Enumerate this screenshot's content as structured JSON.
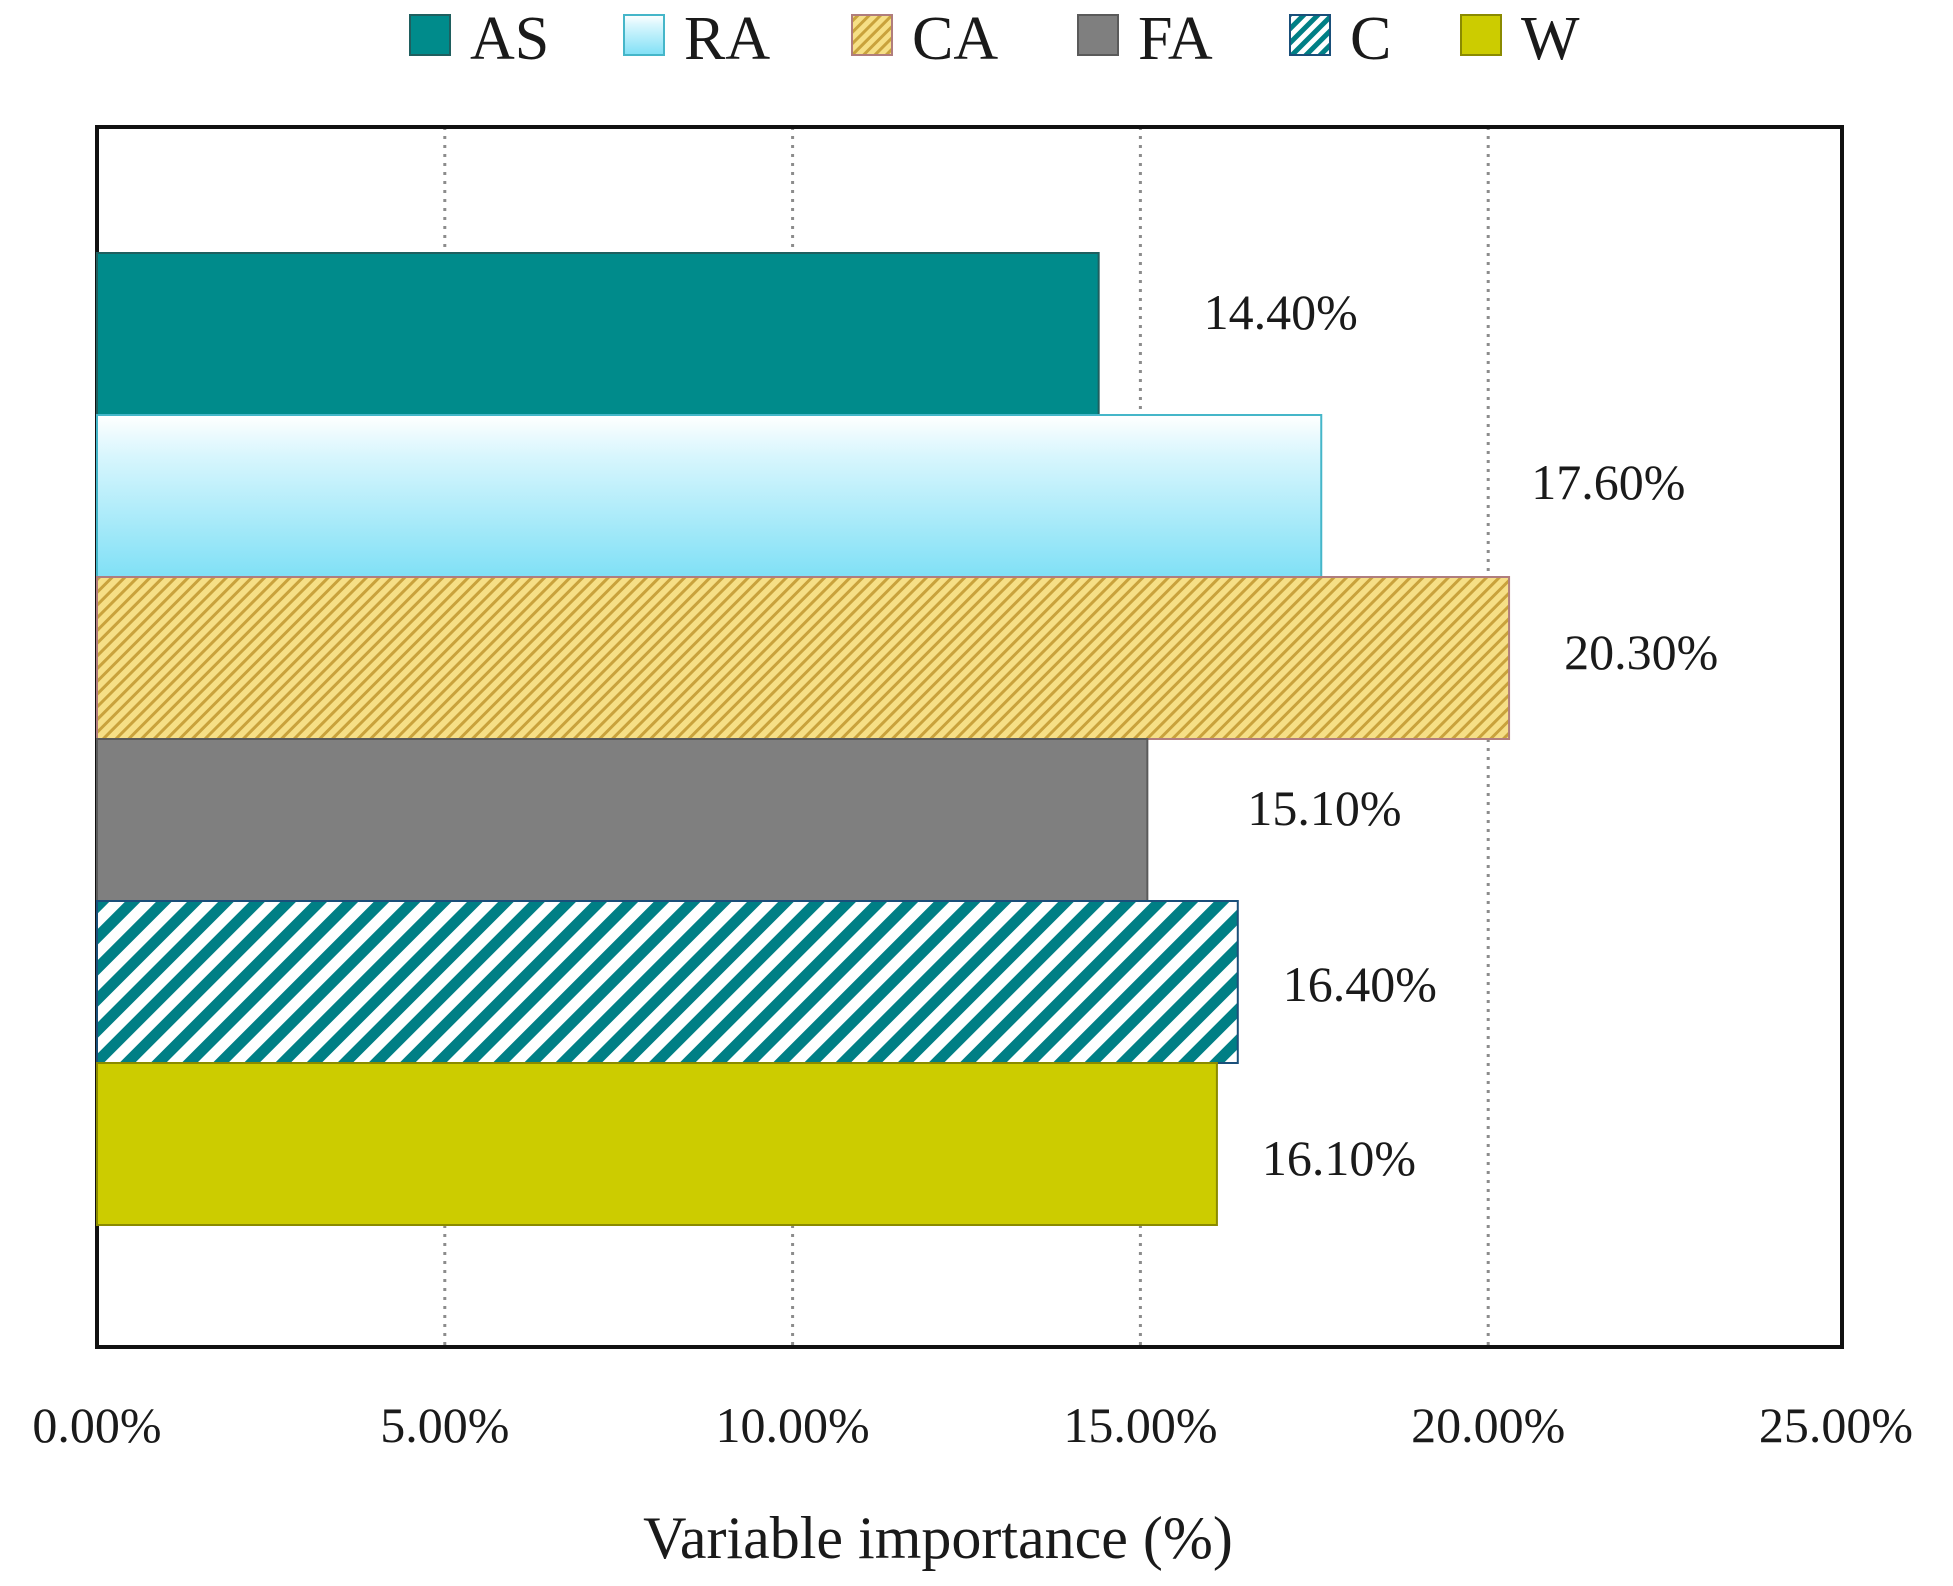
{
  "chart_data": {
    "type": "bar",
    "orientation": "horizontal",
    "title": "",
    "xlabel": "Variable importance (%)",
    "ylabel": "",
    "xlim": [
      0,
      25
    ],
    "xticks": [
      0,
      5,
      10,
      15,
      20,
      25
    ],
    "xtick_labels": [
      "0.00%",
      "5.00%",
      "10.00%",
      "15.00%",
      "20.00%",
      "25.00%"
    ],
    "grid": "vertical-dotted",
    "legend_position": "top",
    "categories": [
      "AS",
      "RA",
      "CA",
      "FA",
      "C",
      "W"
    ],
    "values": [
      14.4,
      17.6,
      20.3,
      15.1,
      16.4,
      16.1
    ],
    "value_labels": [
      "14.40%",
      "17.60%",
      "20.30%",
      "15.10%",
      "16.40%",
      "16.10%"
    ],
    "series_styles": [
      {
        "name": "AS",
        "fill": "#008b8b",
        "pattern": "solid",
        "stroke": "#1f5f5f"
      },
      {
        "name": "RA",
        "fill": "#a9ecfb",
        "pattern": "gradient",
        "stroke": "#45b6c9"
      },
      {
        "name": "CA",
        "fill": "#f3d46a",
        "pattern": "diagonal-hatch",
        "stroke": "#b07d7d"
      },
      {
        "name": "FA",
        "fill": "#7f7f7f",
        "pattern": "solid",
        "stroke": "#5a5a5a"
      },
      {
        "name": "C",
        "fill": "#007f85",
        "pattern": "diagonal-stripe",
        "stroke": "#1a4f7a"
      },
      {
        "name": "W",
        "fill": "#cccc00",
        "pattern": "solid",
        "stroke": "#8a8a00"
      }
    ]
  }
}
